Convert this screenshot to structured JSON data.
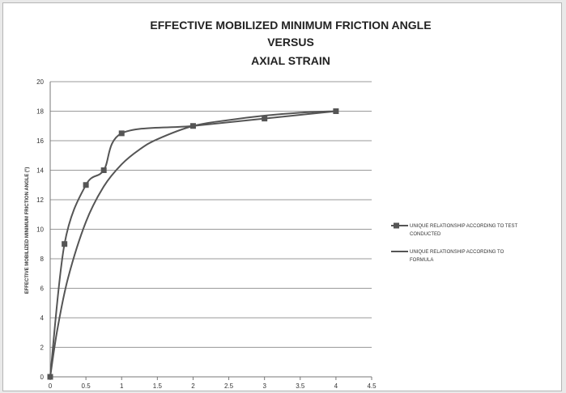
{
  "chart_data": {
    "type": "line",
    "title_lines": [
      "EFFECTIVE MOBILIZED MINIMUM FRICTION ANGLE",
      "VERSUS",
      "AXIAL STRAIN"
    ],
    "xlabel": "",
    "ylabel": "EFFECTIVE MOBILIZED MINIMUM FRICTION ANGLE (°)",
    "xlim": [
      0,
      4.5
    ],
    "ylim": [
      0,
      20
    ],
    "x_ticks": [
      "0",
      "0.5",
      "1",
      "1.5",
      "2",
      "2.5",
      "3",
      "3.5",
      "4",
      "4.5"
    ],
    "y_ticks": [
      "0",
      "2",
      "4",
      "6",
      "8",
      "10",
      "12",
      "14",
      "16",
      "18",
      "20"
    ],
    "grid": "horizontal",
    "legend_position": "right",
    "series": [
      {
        "name": "UNIQUE RELATIONSHIP ACCORDING TO TEST CONDUCTED",
        "legend_lines": [
          "UNIQUE RELATIONSHIP ACCORDING TO TEST",
          "CONDUCTED"
        ],
        "marker": "square",
        "color": "#555555",
        "x": [
          0,
          0.2,
          0.5,
          0.75,
          1,
          2,
          3,
          4
        ],
        "y": [
          0,
          9,
          13,
          14,
          16.5,
          17,
          17.5,
          18
        ]
      },
      {
        "name": "UNIQUE RELATIONSHIP ACCORDING TO FORMULA",
        "legend_lines": [
          "UNIQUE RELATIONSHIP ACCORDING TO",
          "FORMULA"
        ],
        "marker": "none",
        "color": "#555555",
        "x": [
          0,
          0.1,
          0.25,
          0.5,
          0.75,
          1,
          1.25,
          1.5,
          2,
          2.5,
          3,
          3.5,
          4
        ],
        "y": [
          0,
          3.2,
          6.7,
          10.5,
          12.9,
          14.4,
          15.4,
          16.1,
          17,
          17.4,
          17.7,
          17.9,
          18
        ]
      }
    ]
  }
}
